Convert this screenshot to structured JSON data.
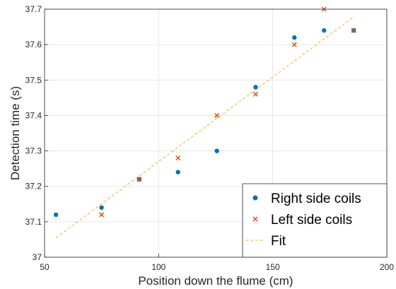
{
  "chart_data": {
    "type": "scatter",
    "title": "",
    "xlabel": "Position down the flume (cm)",
    "ylabel": "Detection time (s)",
    "xlim": [
      50,
      200
    ],
    "ylim": [
      37.0,
      37.7
    ],
    "xticks": [
      "50",
      "100",
      "150",
      "200"
    ],
    "yticks": [
      "37",
      "37.1",
      "37.2",
      "37.3",
      "37.4",
      "37.5",
      "37.6",
      "37.7"
    ],
    "grid": true,
    "legend_position": "bottom-right",
    "series": [
      {
        "name": "Right side coils",
        "marker": "dot",
        "color": "#0072BD",
        "x": [
          55,
          75,
          91.5,
          108.5,
          125.5,
          142.5,
          159.5,
          172.5,
          185.5
        ],
        "y": [
          37.12,
          37.14,
          37.22,
          37.24,
          37.3,
          37.48,
          37.62,
          37.64,
          37.64
        ]
      },
      {
        "name": "Left side coils",
        "marker": "x",
        "color": "#D95319",
        "x": [
          75,
          91.5,
          108.5,
          125.5,
          142.5,
          159.5,
          172.5,
          185.5
        ],
        "y": [
          37.12,
          37.22,
          37.28,
          37.4,
          37.46,
          37.6,
          37.7,
          37.64
        ]
      },
      {
        "name": "Fit",
        "marker": "dashed-line",
        "color": "#EDB120",
        "x": [
          55,
          185.5
        ],
        "y": [
          37.055,
          37.678
        ]
      }
    ]
  }
}
